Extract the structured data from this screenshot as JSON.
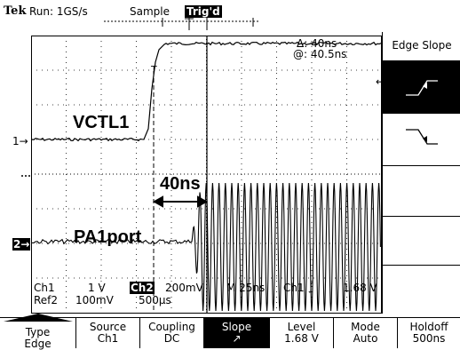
{
  "header": {
    "brand": "Tek",
    "run_status": "Run: 1GS/s",
    "acq_mode": "Sample",
    "trig_badge": "Trig'd"
  },
  "trace_labels": {
    "upper": "VCTL1",
    "lower": "PA1port",
    "delay": "40ns"
  },
  "cursor_readout": {
    "delta": "Δ: 40ns",
    "at": "@: 40.5ns"
  },
  "channel_markers": {
    "ch1": "1",
    "ch2": "2"
  },
  "status_line": {
    "ch1": "Ch1",
    "ch1_scale": "1 V",
    "ch2_badge": "Ch2",
    "ch2_scale": "200mV",
    "timebase": "M  25ns",
    "trig_src": "Ch1",
    "trig_level": "1.68 V",
    "ref2": "Ref2",
    "ref2_scale": "100mV",
    "ref2_time": "500µs"
  },
  "side_menu": {
    "title": "Edge Slope"
  },
  "bottom_menu": [
    {
      "name": "Type",
      "value": "Edge"
    },
    {
      "name": "Source",
      "value": "Ch1"
    },
    {
      "name": "Coupling",
      "value": "DC"
    },
    {
      "name": "Slope",
      "value": "↗"
    },
    {
      "name": "Level",
      "value": "1.68 V"
    },
    {
      "name": "Mode",
      "value": "Auto"
    },
    {
      "name": "Holdoff",
      "value": "500ns"
    }
  ]
}
